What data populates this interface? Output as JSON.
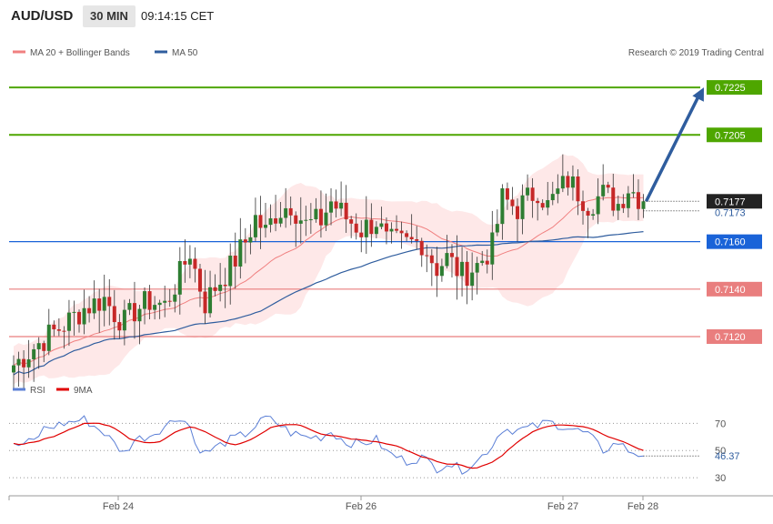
{
  "header": {
    "pair": "AUD/USD",
    "timeframe": "30 MIN",
    "time": "09:14:15 CET"
  },
  "legend": {
    "ma20": "MA 20 + Bollinger Bands",
    "ma50": "MA 50",
    "credit": "Research © 2019 Trading Central",
    "ma20_color": "#f08080",
    "ma50_color": "#2f5d9e"
  },
  "rsi_legend": {
    "rsi": "RSI",
    "ma": "9MA",
    "rsi_color": "#5b7fd6",
    "ma_color": "#e00000"
  },
  "chart_data": {
    "type": "candlestick",
    "ylim": [
      0.7097,
      0.7235
    ],
    "x_tick_labels": [
      "Feb 24",
      "Feb 26",
      "Feb 27",
      "Feb 28"
    ],
    "current_price": 0.7177,
    "ma50_last": 0.7173,
    "levels": [
      {
        "value": 0.7225,
        "label": "0.7225",
        "color": "#4ea600",
        "kind": "resistance"
      },
      {
        "value": 0.7205,
        "label": "0.7205",
        "color": "#4ea600",
        "kind": "resistance"
      },
      {
        "value": 0.716,
        "label": "0.7160",
        "color": "#1a63d8",
        "kind": "pivot"
      },
      {
        "value": 0.714,
        "label": "0.7140",
        "color": "#e97e7e",
        "kind": "support"
      },
      {
        "value": 0.712,
        "label": "0.7120",
        "color": "#e97e7e",
        "kind": "support"
      }
    ],
    "current_label": {
      "label": "0.7177",
      "color": "#222222"
    },
    "ma50_label": {
      "label": "0.7173",
      "color": "#2f5d9e"
    },
    "anchors": [
      [
        0,
        0.7108
      ],
      [
        6,
        0.7119
      ],
      [
        10,
        0.7125
      ],
      [
        14,
        0.7132
      ],
      [
        18,
        0.7136
      ],
      [
        20,
        0.713
      ],
      [
        22,
        0.7126
      ],
      [
        24,
        0.7131
      ],
      [
        27,
        0.7135
      ],
      [
        30,
        0.7133
      ],
      [
        33,
        0.7146
      ],
      [
        35,
        0.7156
      ],
      [
        36,
        0.7148
      ],
      [
        38,
        0.7134
      ],
      [
        40,
        0.7141
      ],
      [
        43,
        0.7149
      ],
      [
        46,
        0.716
      ],
      [
        48,
        0.717
      ],
      [
        50,
        0.7164
      ],
      [
        52,
        0.7172
      ],
      [
        55,
        0.7176
      ],
      [
        58,
        0.7167
      ],
      [
        61,
        0.7169
      ],
      [
        63,
        0.7177
      ],
      [
        66,
        0.717
      ],
      [
        69,
        0.7165
      ],
      [
        72,
        0.7169
      ],
      [
        74,
        0.716
      ],
      [
        78,
        0.7159
      ],
      [
        81,
        0.716
      ],
      [
        84,
        0.7149
      ],
      [
        86,
        0.7153
      ],
      [
        89,
        0.7146
      ],
      [
        92,
        0.715
      ],
      [
        95,
        0.7158
      ],
      [
        97,
        0.7178
      ],
      [
        100,
        0.7174
      ],
      [
        104,
        0.7182
      ],
      [
        106,
        0.7175
      ],
      [
        110,
        0.7186
      ],
      [
        114,
        0.7176
      ],
      [
        117,
        0.718
      ],
      [
        120,
        0.7176
      ],
      [
        122,
        0.7183
      ],
      [
        125,
        0.7177
      ]
    ],
    "arrow": {
      "from": [
        0.7177,
        0
      ],
      "to": [
        0.7225,
        12
      ]
    },
    "rsi": {
      "ylim": [
        20,
        85
      ],
      "levels": [
        70,
        50,
        30
      ],
      "value_label": "46.37",
      "anchors": [
        [
          0,
          53
        ],
        [
          4,
          57
        ],
        [
          6,
          66
        ],
        [
          10,
          70
        ],
        [
          14,
          73
        ],
        [
          16,
          68
        ],
        [
          18,
          63
        ],
        [
          20,
          55
        ],
        [
          22,
          48
        ],
        [
          24,
          58
        ],
        [
          27,
          61
        ],
        [
          30,
          68
        ],
        [
          33,
          75
        ],
        [
          35,
          68
        ],
        [
          36,
          55
        ],
        [
          38,
          48
        ],
        [
          40,
          52
        ],
        [
          43,
          58
        ],
        [
          46,
          62
        ],
        [
          48,
          68
        ],
        [
          50,
          74
        ],
        [
          52,
          71
        ],
        [
          55,
          63
        ],
        [
          58,
          60
        ],
        [
          61,
          60
        ],
        [
          63,
          64
        ],
        [
          66,
          56
        ],
        [
          69,
          55
        ],
        [
          72,
          58
        ],
        [
          74,
          49
        ],
        [
          78,
          42
        ],
        [
          81,
          45
        ],
        [
          84,
          37
        ],
        [
          86,
          41
        ],
        [
          89,
          36
        ],
        [
          92,
          42
        ],
        [
          95,
          54
        ],
        [
          97,
          66
        ],
        [
          100,
          65
        ],
        [
          104,
          68
        ],
        [
          106,
          71
        ],
        [
          110,
          67
        ],
        [
          114,
          62
        ],
        [
          117,
          50
        ],
        [
          120,
          56
        ],
        [
          122,
          50
        ],
        [
          125,
          46
        ]
      ]
    }
  }
}
